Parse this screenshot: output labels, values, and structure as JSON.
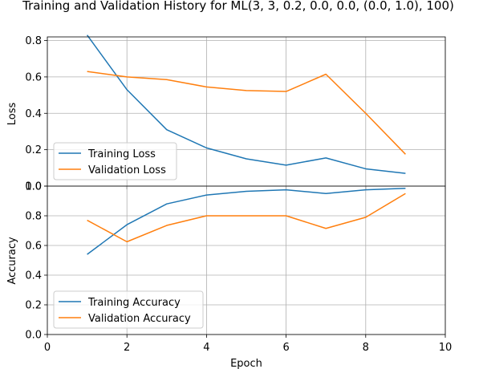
{
  "figure": {
    "title": "Training and Validation History for ML(3, 3, 0.2, 0.0, 0.0, (0.0, 1.0), 100)"
  },
  "chart_data": [
    {
      "type": "line",
      "ylabel": "Loss",
      "xlabel": "",
      "xlim": [
        0,
        10
      ],
      "ylim": [
        0,
        0.82
      ],
      "yticks": [
        "0.0",
        "0.2",
        "0.4",
        "0.6",
        "0.8"
      ],
      "grid": true,
      "legend_position": "lower-left",
      "series": [
        {
          "name": "Training Loss",
          "color": "#1f77b4",
          "x": [
            1,
            2,
            3,
            4,
            5,
            6,
            7,
            8,
            9
          ],
          "values": [
            0.83,
            0.53,
            0.31,
            0.21,
            0.15,
            0.115,
            0.155,
            0.095,
            0.07
          ]
        },
        {
          "name": "Validation Loss",
          "color": "#ff7f0e",
          "x": [
            1,
            2,
            3,
            4,
            5,
            6,
            7,
            8,
            9
          ],
          "values": [
            0.63,
            0.6,
            0.585,
            0.545,
            0.525,
            0.52,
            0.615,
            0.4,
            0.175
          ]
        }
      ]
    },
    {
      "type": "line",
      "ylabel": "Accuracy",
      "xlabel": "Epoch",
      "xlim": [
        0,
        10
      ],
      "ylim": [
        0,
        1.0
      ],
      "xticks": [
        "0",
        "2",
        "4",
        "6",
        "8",
        "10"
      ],
      "yticks": [
        "0.0",
        "0.2",
        "0.4",
        "0.6",
        "0.8",
        "1.0"
      ],
      "grid": true,
      "legend_position": "lower-left",
      "series": [
        {
          "name": "Training Accuracy",
          "color": "#1f77b4",
          "x": [
            1,
            2,
            3,
            4,
            5,
            6,
            7,
            8,
            9
          ],
          "values": [
            0.54,
            0.74,
            0.88,
            0.94,
            0.965,
            0.975,
            0.95,
            0.975,
            0.985
          ]
        },
        {
          "name": "Validation Accuracy",
          "color": "#ff7f0e",
          "x": [
            1,
            2,
            3,
            4,
            5,
            6,
            7,
            8,
            9
          ],
          "values": [
            0.77,
            0.625,
            0.735,
            0.8,
            0.8,
            0.8,
            0.715,
            0.79,
            0.95
          ]
        }
      ]
    }
  ]
}
